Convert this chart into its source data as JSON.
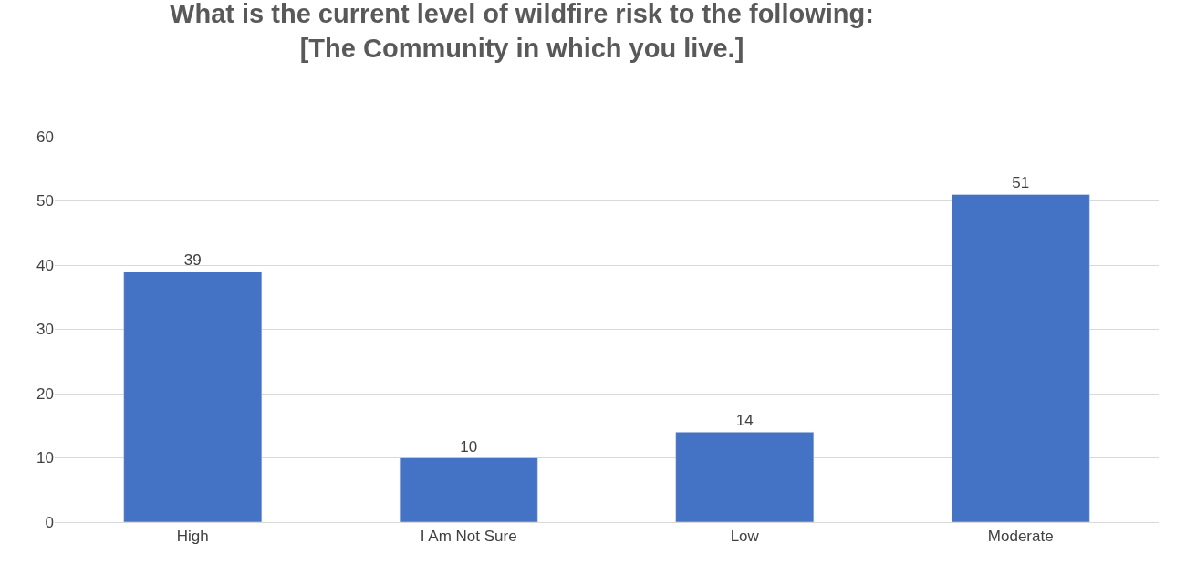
{
  "chart_data": {
    "type": "bar",
    "title": "What is the current level of wildfire risk to the following:\n[The Community in which you live.]",
    "categories": [
      "High",
      "I Am Not Sure",
      "Low",
      "Moderate"
    ],
    "values": [
      39,
      10,
      14,
      51
    ],
    "color": "#4472c4",
    "ylim": [
      0,
      60
    ],
    "yticks": [
      0,
      10,
      20,
      30,
      40,
      50,
      60
    ],
    "grid": "y",
    "data_labels": true
  }
}
